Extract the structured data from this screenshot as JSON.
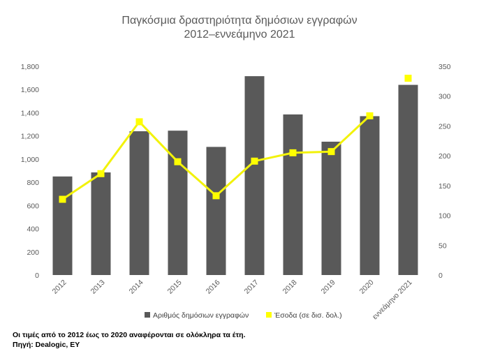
{
  "colors": {
    "bar": "#595959",
    "line": "#f2f20a",
    "marker": "#ffff00",
    "text": "#595959"
  },
  "footnotes": {
    "note": "Οι τιμές από το 2012 έως το 2020 αναφέρονται σε ολόκληρα τα έτη.",
    "source": "Πηγή: Dealogic, EY"
  },
  "chart_data": {
    "type": "bar",
    "title": [
      "Παγκόσμια δραστηριότητα δημόσιων εγγραφών",
      "2012–εννεάμηνο 2021"
    ],
    "categories": [
      "2012",
      "2013",
      "2014",
      "2015",
      "2016",
      "2017",
      "2018",
      "2019",
      "2020",
      "εννεάμηνο 2021"
    ],
    "series": [
      {
        "name": "Αριθμός δημόσιων εγγραφών",
        "type": "bar",
        "axis": "left",
        "values": [
          850,
          885,
          1240,
          1245,
          1105,
          1715,
          1385,
          1150,
          1370,
          1640
        ]
      },
      {
        "name": "Έσοδα (σε δισ. δολ.)",
        "type": "line",
        "axis": "right",
        "values": [
          127,
          170,
          257,
          190,
          133,
          191,
          205,
          207,
          267,
          330
        ],
        "line_last_point": false
      }
    ],
    "y_left": {
      "min": 0,
      "max": 1800,
      "ticks": [
        "0",
        "200",
        "400",
        "600",
        "800",
        "1,000",
        "1,200",
        "1,400",
        "1,600",
        "1,800"
      ]
    },
    "y_right": {
      "min": 0,
      "max": 350,
      "ticks": [
        "0",
        "50",
        "100",
        "150",
        "200",
        "250",
        "300",
        "350"
      ]
    },
    "grid": false,
    "legend_position": "bottom"
  }
}
